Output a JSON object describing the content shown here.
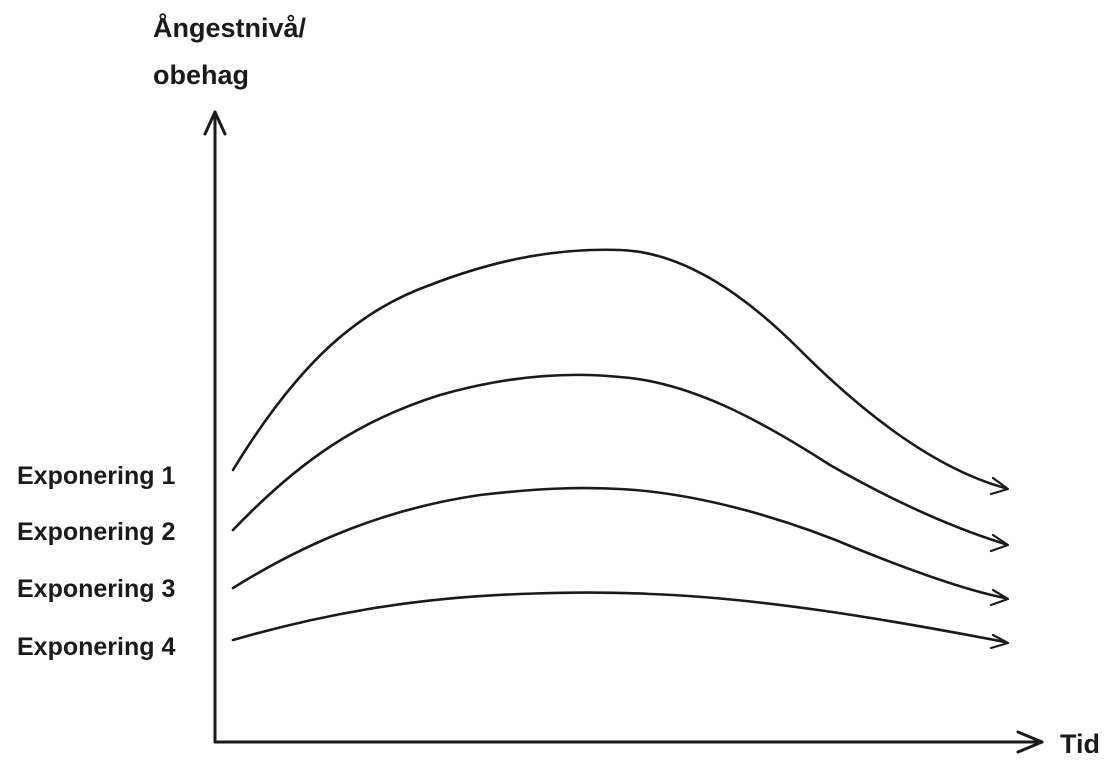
{
  "y_axis": {
    "label_line1": "Ångestnivå/",
    "label_line2": "obehag"
  },
  "x_axis": {
    "label": "Tid"
  },
  "curves": [
    {
      "label": "Exponering 1",
      "level": 1.0
    },
    {
      "label": "Exponering 2",
      "level": 0.73
    },
    {
      "label": "Exponering 3",
      "level": 0.47
    },
    {
      "label": "Exponering 4",
      "level": 0.2
    }
  ],
  "colors": {
    "line": "#1a1a1a",
    "background": "#ffffff"
  }
}
